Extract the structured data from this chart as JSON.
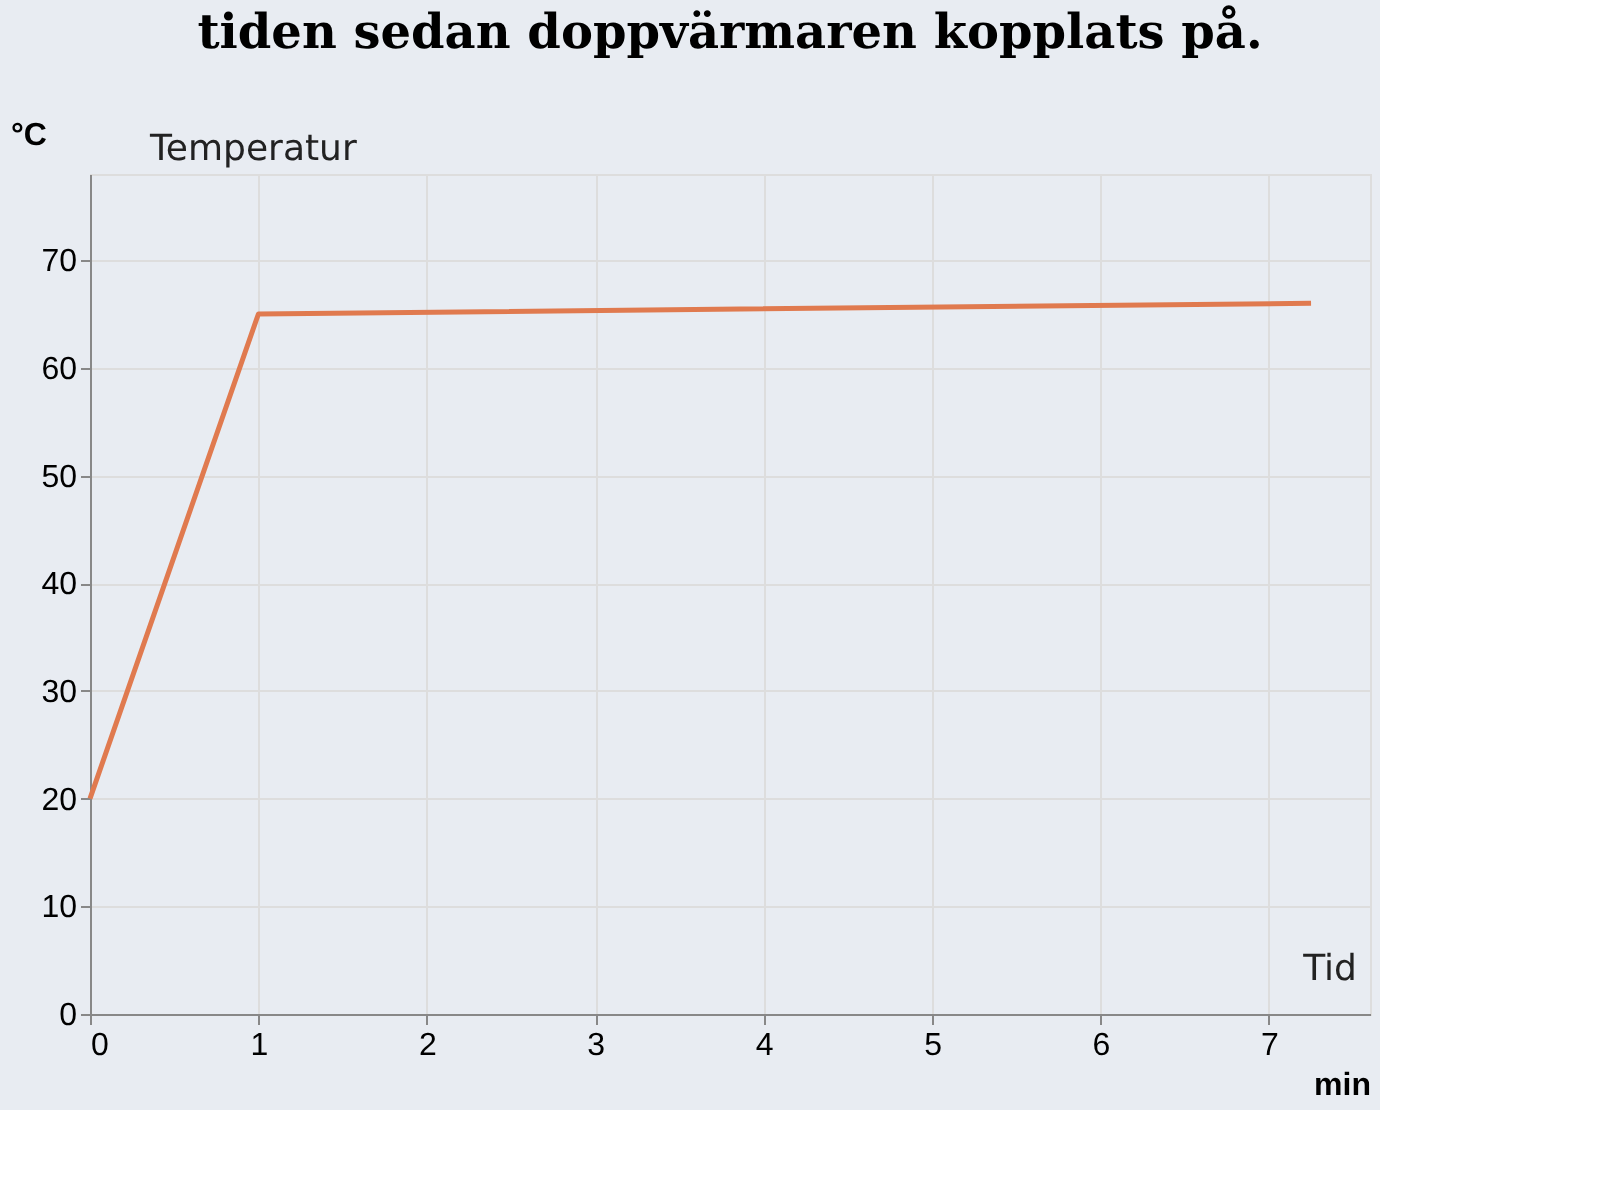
{
  "chart_data": {
    "type": "line",
    "title": "tiden sedan doppvärmaren kopplats på.",
    "xlabel": "min",
    "ylabel": "°C",
    "annotations": [
      "Temperatur",
      "Tid"
    ],
    "x": [
      0,
      1,
      7.25
    ],
    "series": [
      {
        "color": "#e07a4f",
        "values": [
          20,
          65,
          66
        ]
      }
    ],
    "xlim": [
      0,
      7.6
    ],
    "xticks": [
      0,
      1,
      2,
      3,
      4,
      5,
      6,
      7
    ],
    "ylim": [
      0,
      78
    ],
    "yticks": [
      0,
      10,
      20,
      30,
      40,
      50,
      60,
      70
    ],
    "grid": true,
    "marker": "none",
    "line_style": "solid"
  }
}
